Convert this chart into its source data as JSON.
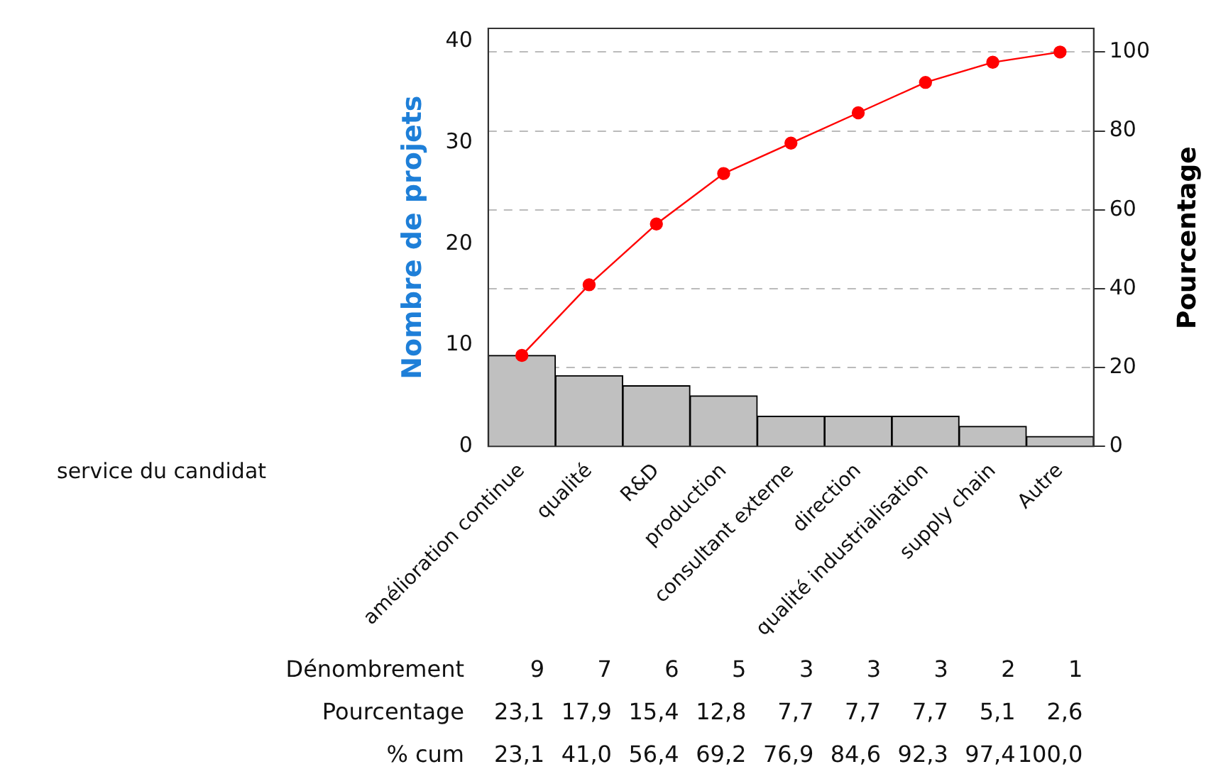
{
  "chart_data": {
    "type": "bar",
    "ylabel": "Nombre de projets",
    "y2label": "Pourcentage",
    "xlabel": "service du candidat",
    "categories": [
      "amélioration continue",
      "qualité",
      "R&D",
      "production",
      "consultant externe",
      "direction",
      "qualité industrialisation",
      "supply chain",
      "Autre"
    ],
    "series": [
      {
        "color": "#c0c0c0",
        "values": [
          9,
          7,
          6,
          5,
          3,
          3,
          3,
          2,
          1
        ],
        "value_labels": [
          "9",
          "7",
          "6",
          "5",
          "3",
          "3",
          "3",
          "2",
          "1"
        ]
      },
      {
        "type": "line",
        "axis": "y2",
        "color": "#ff0000",
        "values": [
          23.1,
          41.0,
          56.4,
          69.2,
          76.9,
          84.6,
          92.3,
          97.4,
          100.0
        ],
        "value_labels": [
          "23,1",
          "41,0",
          "56,4",
          "69,2",
          "76,9",
          "84,6",
          "92,3",
          "97,4",
          "100,0"
        ]
      }
    ],
    "annotations": [
      "Dénombrement",
      "Pourcentage",
      "% cum",
      "23,1",
      "17,9",
      "15,4",
      "12,8",
      "7,7",
      "7,7",
      "7,7",
      "5,1",
      "2,6"
    ],
    "ylim": [
      0,
      41.3
    ],
    "yticks": [
      0,
      10,
      20,
      30,
      40
    ],
    "y2lim": [
      0,
      106
    ],
    "y2ticks": [
      0,
      20,
      40,
      60,
      80,
      100
    ],
    "grid": "y2",
    "legend": false,
    "marker": "circle",
    "line_style": "solid"
  }
}
